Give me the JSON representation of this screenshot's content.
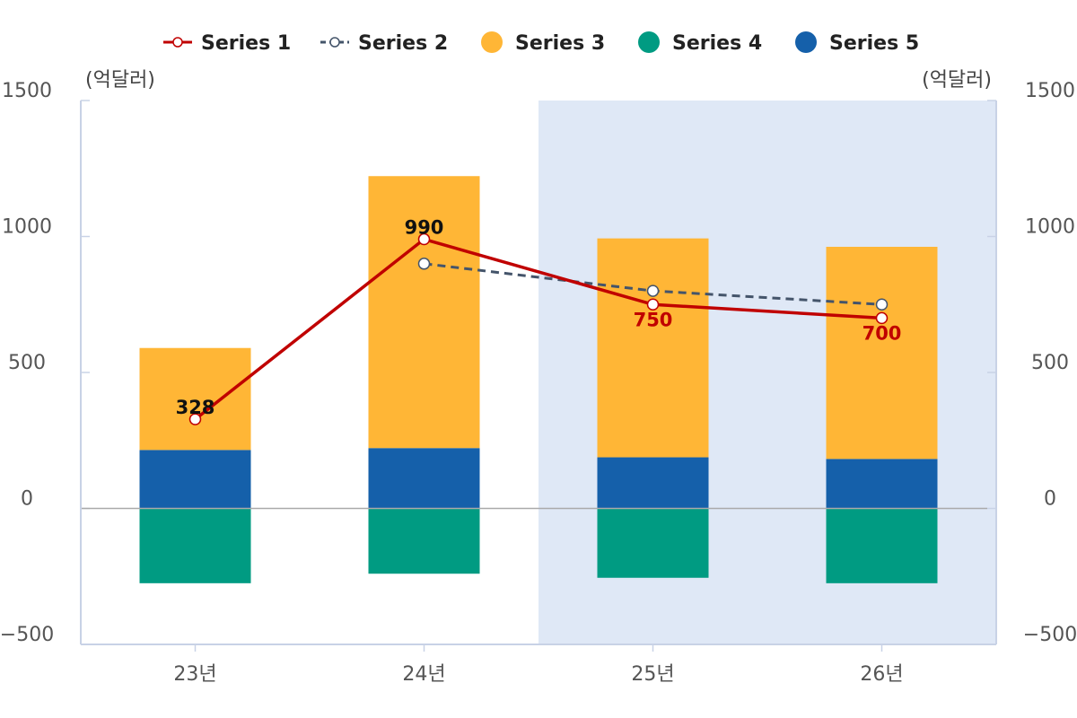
{
  "chart_data": {
    "type": "bar",
    "categories": [
      "23년",
      "24년",
      "25년",
      "26년"
    ],
    "forecast_categories": [
      "25년",
      "26년"
    ],
    "stacked": true,
    "ylim": [
      -500,
      1500
    ],
    "y_ticks": [
      "-500",
      "0",
      "500",
      "1000",
      "1500"
    ],
    "y_ticks_right": [
      "-500",
      "0",
      "500",
      "1000",
      "1500"
    ],
    "ylabel_left": "(억달러)",
    "ylabel_right": "(억달러)",
    "legend_position": "top",
    "series": [
      {
        "name": "Series 1",
        "kind": "line",
        "style": "solid",
        "color": "#c00000",
        "values": [
          328,
          990,
          750,
          700
        ],
        "labels": [
          "328",
          "990",
          "750",
          "700"
        ]
      },
      {
        "name": "Series 2",
        "kind": "line",
        "style": "dashed",
        "color": "#44546a",
        "values": [
          null,
          900,
          800,
          750
        ]
      },
      {
        "name": "Series 3",
        "kind": "bar",
        "color": "#ffb636",
        "values": [
          375,
          1000,
          805,
          780
        ]
      },
      {
        "name": "Series 4",
        "kind": "bar",
        "color": "#009b82",
        "values": [
          -275,
          -240,
          -255,
          -275
        ]
      },
      {
        "name": "Series 5",
        "kind": "bar",
        "color": "#1560aa",
        "values": [
          215,
          222,
          188,
          182
        ]
      }
    ]
  }
}
